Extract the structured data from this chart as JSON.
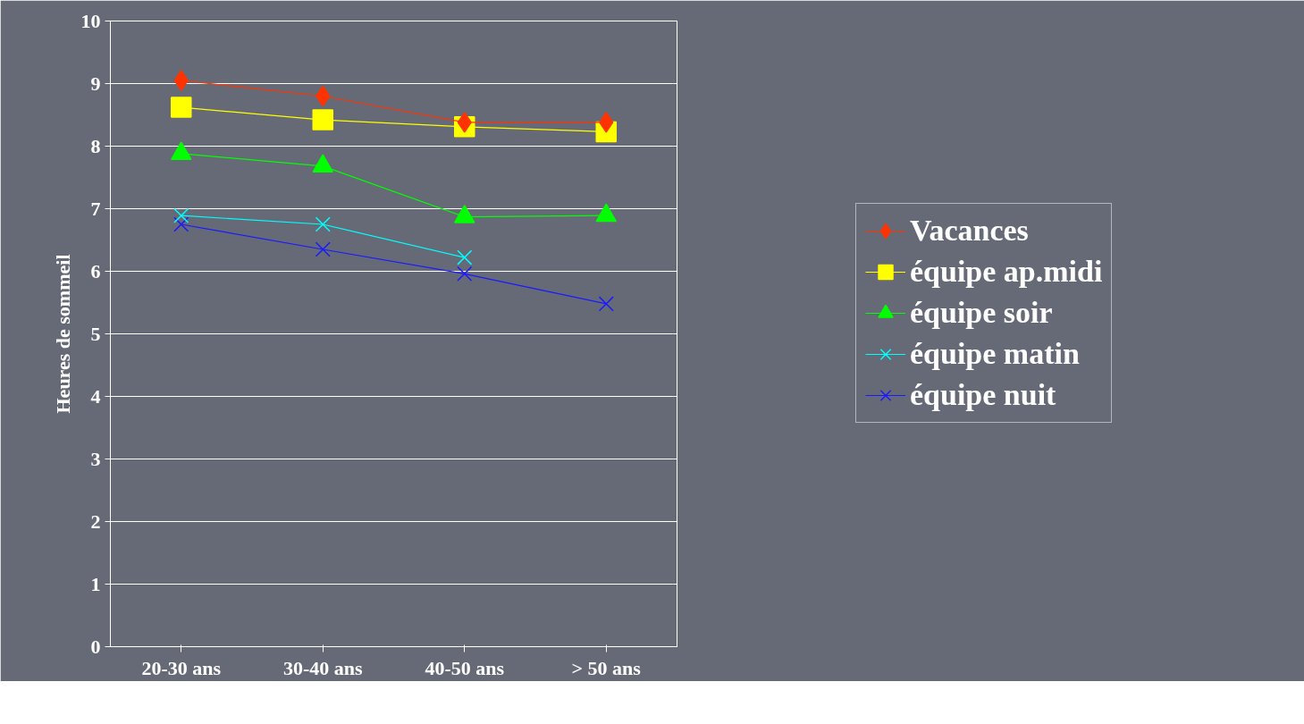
{
  "chart_data": {
    "type": "line",
    "ylabel": "Heures de sommeil",
    "categories": [
      "20-30 ans",
      "30-40 ans",
      "40-50 ans",
      "> 50 ans"
    ],
    "ylim": [
      0,
      10
    ],
    "yticks": [
      0,
      1,
      2,
      3,
      4,
      5,
      6,
      7,
      8,
      9,
      10
    ],
    "grid": "y",
    "legend": "right",
    "series": [
      {
        "name": "Vacances",
        "color": "#ff3300",
        "marker": "diamond",
        "values": [
          9.05,
          8.8,
          8.38,
          8.38
        ]
      },
      {
        "name": "équipe ap.midi",
        "color": "#ffff00",
        "marker": "square",
        "values": [
          8.62,
          8.42,
          8.31,
          8.23
        ]
      },
      {
        "name": "équipe soir",
        "color": "#00ff00",
        "marker": "triangle",
        "values": [
          7.88,
          7.68,
          6.87,
          6.89
        ]
      },
      {
        "name": "équipe matin",
        "color": "#00ffff",
        "marker": "cross",
        "values": [
          6.89,
          6.75,
          6.22,
          null
        ]
      },
      {
        "name": "équipe nuit",
        "color": "#1a1aff",
        "marker": "cross",
        "values": [
          6.75,
          6.35,
          5.96,
          5.48
        ]
      }
    ]
  }
}
